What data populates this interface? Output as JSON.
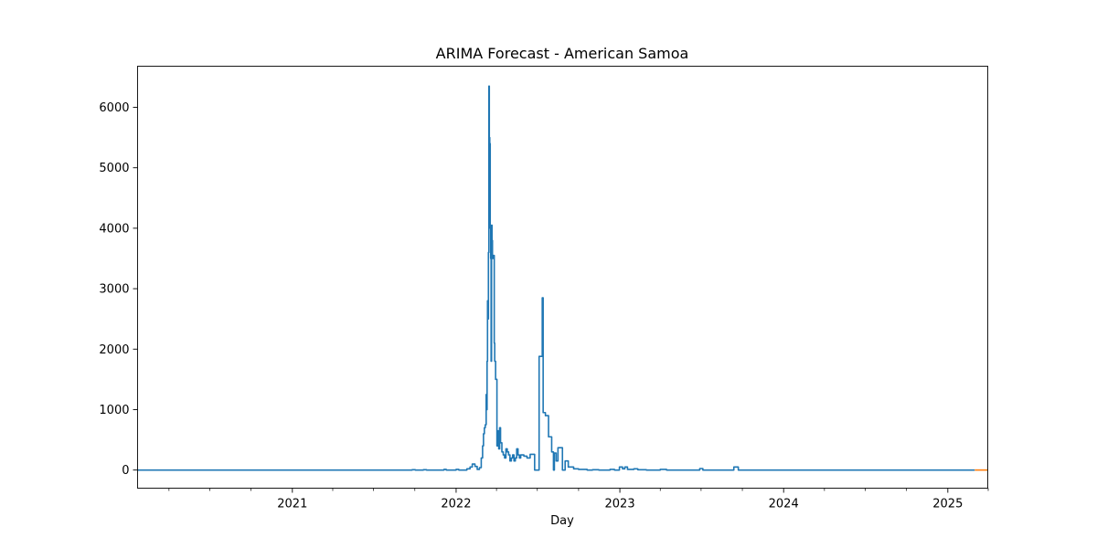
{
  "chart_data": {
    "type": "line",
    "title": "ARIMA Forecast - American Samoa",
    "xlabel": "Day",
    "ylabel": "",
    "x_axis_type": "date",
    "xlim": [
      "2020-01-22",
      "2025-03-31"
    ],
    "ylim": [
      -300,
      6680
    ],
    "x_ticks": [
      {
        "date": "2021-01-01",
        "label": "2021"
      },
      {
        "date": "2022-01-01",
        "label": "2022"
      },
      {
        "date": "2023-01-01",
        "label": "2023"
      },
      {
        "date": "2024-01-01",
        "label": "2024"
      },
      {
        "date": "2025-01-01",
        "label": "2025"
      }
    ],
    "x_minor_ticks": [
      "2020-04-01",
      "2020-07-01",
      "2020-10-01",
      "2021-04-01",
      "2021-07-01",
      "2021-10-01",
      "2022-04-01",
      "2022-07-01",
      "2022-10-01",
      "2023-04-01",
      "2023-07-01",
      "2023-10-01",
      "2024-04-01",
      "2024-07-01",
      "2024-10-01",
      "2025-04-01"
    ],
    "y_ticks": [
      0,
      1000,
      2000,
      3000,
      4000,
      5000,
      6000
    ],
    "y_tick_labels": [
      "0",
      "1000",
      "2000",
      "3000",
      "4000",
      "5000",
      "6000"
    ],
    "grid": false,
    "series": [
      {
        "color": "#1f77b4",
        "step": true,
        "points": [
          [
            "2020-01-22",
            0
          ],
          [
            "2021-09-20",
            0
          ],
          [
            "2021-09-25",
            5
          ],
          [
            "2021-10-02",
            0
          ],
          [
            "2021-10-20",
            5
          ],
          [
            "2021-10-27",
            0
          ],
          [
            "2021-12-05",
            10
          ],
          [
            "2021-12-10",
            0
          ],
          [
            "2021-12-25",
            0
          ],
          [
            "2022-01-01",
            10
          ],
          [
            "2022-01-07",
            0
          ],
          [
            "2022-01-25",
            20
          ],
          [
            "2022-02-01",
            50
          ],
          [
            "2022-02-06",
            100
          ],
          [
            "2022-02-12",
            60
          ],
          [
            "2022-02-17",
            10
          ],
          [
            "2022-02-22",
            40
          ],
          [
            "2022-02-26",
            200
          ],
          [
            "2022-03-01",
            400
          ],
          [
            "2022-03-03",
            600
          ],
          [
            "2022-03-05",
            700
          ],
          [
            "2022-03-07",
            750
          ],
          [
            "2022-03-09",
            1250
          ],
          [
            "2022-03-10",
            1000
          ],
          [
            "2022-03-11",
            1800
          ],
          [
            "2022-03-12",
            2800
          ],
          [
            "2022-03-13",
            2500
          ],
          [
            "2022-03-14",
            3600
          ],
          [
            "2022-03-15",
            6350
          ],
          [
            "2022-03-16",
            5500
          ],
          [
            "2022-03-17",
            5400
          ],
          [
            "2022-03-18",
            4000
          ],
          [
            "2022-03-19",
            3500
          ],
          [
            "2022-03-20",
            1800
          ],
          [
            "2022-03-21",
            4050
          ],
          [
            "2022-03-22",
            3800
          ],
          [
            "2022-03-23",
            3500
          ],
          [
            "2022-03-25",
            3550
          ],
          [
            "2022-03-27",
            2100
          ],
          [
            "2022-03-28",
            1800
          ],
          [
            "2022-03-30",
            1500
          ],
          [
            "2022-04-02",
            400
          ],
          [
            "2022-04-04",
            650
          ],
          [
            "2022-04-06",
            350
          ],
          [
            "2022-04-08",
            700
          ],
          [
            "2022-04-10",
            450
          ],
          [
            "2022-04-13",
            300
          ],
          [
            "2022-04-16",
            250
          ],
          [
            "2022-04-19",
            200
          ],
          [
            "2022-04-22",
            350
          ],
          [
            "2022-04-25",
            300
          ],
          [
            "2022-04-28",
            250
          ],
          [
            "2022-05-01",
            150
          ],
          [
            "2022-05-04",
            200
          ],
          [
            "2022-05-07",
            250
          ],
          [
            "2022-05-10",
            150
          ],
          [
            "2022-05-13",
            200
          ],
          [
            "2022-05-16",
            350
          ],
          [
            "2022-05-19",
            250
          ],
          [
            "2022-05-22",
            200
          ],
          [
            "2022-05-25",
            250
          ],
          [
            "2022-06-01",
            230
          ],
          [
            "2022-06-08",
            200
          ],
          [
            "2022-06-15",
            260
          ],
          [
            "2022-06-25",
            0
          ],
          [
            "2022-07-05",
            1880
          ],
          [
            "2022-07-12",
            2850
          ],
          [
            "2022-07-14",
            950
          ],
          [
            "2022-07-19",
            900
          ],
          [
            "2022-07-26",
            550
          ],
          [
            "2022-08-02",
            300
          ],
          [
            "2022-08-06",
            0
          ],
          [
            "2022-08-08",
            280
          ],
          [
            "2022-08-12",
            150
          ],
          [
            "2022-08-16",
            370
          ],
          [
            "2022-08-26",
            0
          ],
          [
            "2022-09-01",
            150
          ],
          [
            "2022-09-08",
            50
          ],
          [
            "2022-09-20",
            20
          ],
          [
            "2022-10-01",
            10
          ],
          [
            "2022-10-20",
            0
          ],
          [
            "2022-11-01",
            5
          ],
          [
            "2022-11-15",
            0
          ],
          [
            "2022-12-10",
            10
          ],
          [
            "2022-12-20",
            0
          ],
          [
            "2022-12-31",
            50
          ],
          [
            "2023-01-07",
            20
          ],
          [
            "2023-01-12",
            50
          ],
          [
            "2023-01-18",
            10
          ],
          [
            "2023-02-01",
            20
          ],
          [
            "2023-02-10",
            5
          ],
          [
            "2023-03-01",
            0
          ],
          [
            "2023-04-01",
            10
          ],
          [
            "2023-04-15",
            0
          ],
          [
            "2023-06-28",
            25
          ],
          [
            "2023-07-05",
            0
          ],
          [
            "2023-09-12",
            50
          ],
          [
            "2023-09-22",
            0
          ],
          [
            "2025-03-02",
            0
          ]
        ]
      },
      {
        "color": "#ff7f0e",
        "step": false,
        "points": [
          [
            "2025-03-02",
            0
          ],
          [
            "2025-03-31",
            0
          ]
        ]
      }
    ]
  }
}
